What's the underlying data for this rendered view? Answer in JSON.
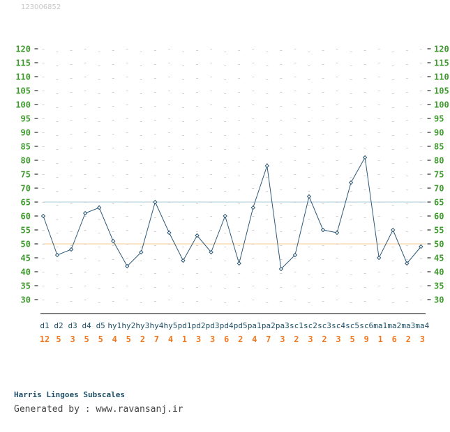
{
  "header": {
    "id_text": "123006852"
  },
  "footer": {
    "title": "Harris Lingoes Subscales",
    "generated": "Generated by : www.ravansanj.ir"
  },
  "colors": {
    "line": "#2e5a78",
    "tick_label": "#3f9a2e",
    "score": "#f07820",
    "category": "#1e4f66",
    "ref_high": "#a8c8d8",
    "ref_low": "#f3c890",
    "axis": "#000000"
  },
  "chart_data": {
    "type": "line",
    "title": "Harris Lingoes Subscales",
    "xlabel": "",
    "ylabel": "",
    "ylim": [
      30,
      120
    ],
    "ytick_step": 5,
    "grid": false,
    "reference_lines": [
      65,
      50
    ],
    "categories": [
      "d1",
      "d2",
      "d3",
      "d4",
      "d5",
      "hy1",
      "hy2",
      "hy3",
      "hy4",
      "hy5",
      "pd1",
      "pd2",
      "pd3",
      "pd4",
      "pd5",
      "pa1",
      "pa2",
      "pa3",
      "sc1",
      "sc2",
      "sc3",
      "sc4",
      "sc5",
      "sc6",
      "ma1",
      "ma2",
      "ma3",
      "ma4"
    ],
    "raw_scores": [
      "12",
      "5",
      "3",
      "5",
      "5",
      "4",
      "5",
      "2",
      "7",
      "4",
      "1",
      "3",
      "3",
      "6",
      "2",
      "4",
      "7",
      "3",
      "2",
      "3",
      "2",
      "3",
      "5",
      "9",
      "1",
      "6",
      "2",
      "3"
    ],
    "series": [
      {
        "values": [
          60,
          46,
          48,
          61,
          63,
          51,
          42,
          47,
          65,
          54,
          44,
          53,
          47,
          60,
          43,
          63,
          78,
          41,
          46,
          67,
          55,
          54,
          72,
          81,
          45,
          55,
          43,
          49
        ]
      }
    ]
  }
}
